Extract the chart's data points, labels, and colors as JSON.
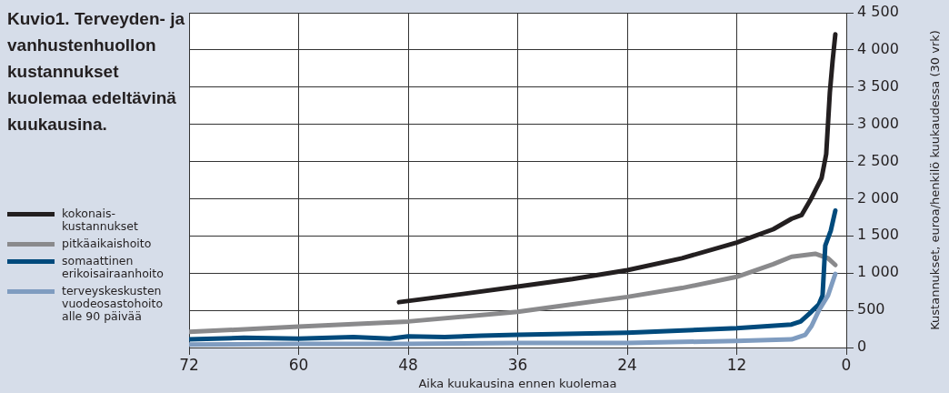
{
  "chart_data": {
    "type": "line",
    "title": "Kuvio1. Terveyden- ja vanhustenhuollon kustannukset kuolemaa edeltävinä kuukausina.",
    "xlabel": "Aika kuukausina ennen kuolemaa",
    "ylabel": "Kustannukset, euroa/henkilö kuukaudessa (30 vrk)",
    "xlim": [
      72,
      0
    ],
    "xticks": [
      72,
      60,
      48,
      36,
      24,
      12,
      0
    ],
    "ylim": [
      0,
      4500
    ],
    "yticks": [
      0,
      500,
      {
        "value": 1000,
        "label": "1 000"
      },
      {
        "value": 1500,
        "label": "1 500"
      },
      {
        "value": 2000,
        "label": "2 000"
      },
      {
        "value": 2500,
        "label": "2 500"
      },
      {
        "value": 3000,
        "label": "3 000"
      },
      {
        "value": 3500,
        "label": "3 500"
      },
      {
        "value": 4000,
        "label": "4 000"
      },
      {
        "value": 4500,
        "label": "4 500"
      }
    ],
    "grid": true,
    "legend": "left",
    "marker": "none",
    "line_style": "solid",
    "series": [
      {
        "name": "kokonais-kustannukset",
        "color": "#231f20",
        "x": [
          49,
          42,
          36,
          30,
          24,
          18,
          12,
          8,
          6,
          4.9,
          3.9,
          2.7,
          2.2,
          1.8,
          1.5,
          1.2
        ],
        "values": [
          610,
          720,
          820,
          920,
          1040,
          1200,
          1410,
          1590,
          1730,
          1780,
          1990,
          2280,
          2600,
          3430,
          3850,
          4210
        ]
      },
      {
        "name": "pitkäaikaishoito",
        "color": "#8a8a8c",
        "x": [
          72,
          60,
          48,
          36,
          30,
          24,
          18,
          12,
          8,
          6,
          3.4,
          2,
          1.2
        ],
        "values": [
          210,
          280,
          350,
          480,
          580,
          680,
          800,
          950,
          1120,
          1220,
          1260,
          1200,
          1110
        ]
      },
      {
        "name": "somaattinen erikoisairaanhoito",
        "color": "#004a7c",
        "x": [
          72,
          66,
          60,
          54,
          50,
          48,
          44,
          40,
          36,
          24,
          12,
          6,
          5,
          4,
          3,
          2.6,
          2.3,
          1.7,
          1.2
        ],
        "values": [
          110,
          130,
          120,
          140,
          120,
          150,
          140,
          160,
          170,
          200,
          260,
          310,
          350,
          460,
          580,
          700,
          1370,
          1570,
          1840
        ]
      },
      {
        "name": "terveyskeskusten vuodeosastohoito alle 90 päivää",
        "color": "#7f9cc0",
        "x": [
          72,
          60,
          48,
          36,
          24,
          12,
          6,
          4.5,
          3.8,
          3,
          2,
          1.2
        ],
        "values": [
          40,
          50,
          50,
          60,
          60,
          90,
          110,
          170,
          290,
          500,
          700,
          990
        ]
      }
    ]
  }
}
